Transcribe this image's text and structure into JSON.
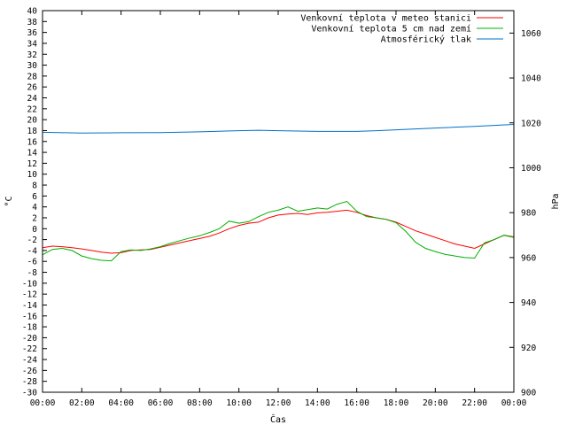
{
  "chart_data": {
    "type": "line",
    "xlabel": "Čas",
    "ylabel": "°C",
    "y2label": "hPa",
    "x_ticks": [
      "00:00",
      "02:00",
      "04:00",
      "06:00",
      "08:00",
      "10:00",
      "12:00",
      "14:00",
      "16:00",
      "18:00",
      "20:00",
      "22:00",
      "00:00"
    ],
    "x_range_hours": [
      0,
      24
    ],
    "ylim": [
      -30,
      40
    ],
    "y_step": 2,
    "y2lim": [
      900,
      1070
    ],
    "y2_ticks": [
      900,
      920,
      940,
      960,
      980,
      1000,
      1020,
      1040,
      1060
    ],
    "grid": false,
    "legend_position": "top-right",
    "series": [
      {
        "name": "Venkovní teplota v meteo stanici",
        "color": "#ff0000",
        "axis": "y1",
        "x": [
          0,
          0.5,
          1,
          1.5,
          2,
          2.5,
          3,
          3.5,
          4,
          4.5,
          5,
          5.5,
          6,
          6.5,
          7,
          7.5,
          8,
          8.5,
          9,
          9.5,
          10,
          10.5,
          11,
          11.5,
          12,
          12.5,
          13,
          13.5,
          14,
          14.5,
          15,
          15.5,
          16,
          16.5,
          17,
          17.5,
          18,
          18.5,
          19,
          19.5,
          20,
          20.5,
          21,
          21.5,
          22,
          22.5,
          23,
          23.5,
          24
        ],
        "values": [
          -3.5,
          -3.2,
          -3.3,
          -3.5,
          -3.7,
          -4,
          -4.3,
          -4.5,
          -4.4,
          -4,
          -3.9,
          -3.8,
          -3.4,
          -3,
          -2.6,
          -2.2,
          -1.8,
          -1.4,
          -0.8,
          0,
          0.6,
          1,
          1.2,
          2,
          2.5,
          2.7,
          2.8,
          2.6,
          2.9,
          3,
          3.2,
          3.4,
          3,
          2.4,
          2,
          1.7,
          1.2,
          0.4,
          -0.4,
          -1,
          -1.6,
          -2.2,
          -2.8,
          -3.2,
          -3.6,
          -2.8,
          -2,
          -1.2,
          -1.5
        ]
      },
      {
        "name": "Venkovní teplota 5 cm nad zemí",
        "color": "#00b000",
        "axis": "y1",
        "x": [
          0,
          0.5,
          1,
          1.5,
          2,
          2.5,
          3,
          3.5,
          4,
          4.5,
          5,
          5.5,
          6,
          6.5,
          7,
          7.5,
          8,
          8.5,
          9,
          9.5,
          10,
          10.5,
          11,
          11.5,
          12,
          12.5,
          13,
          13.5,
          14,
          14.5,
          15,
          15.5,
          16,
          16.5,
          17,
          17.5,
          18,
          18.5,
          19,
          19.5,
          20,
          20.5,
          21,
          21.5,
          22,
          22.5,
          23,
          23.5,
          24
        ],
        "values": [
          -4.8,
          -3.8,
          -3.6,
          -4,
          -5,
          -5.5,
          -5.8,
          -5.9,
          -4.2,
          -3.9,
          -4,
          -3.7,
          -3.3,
          -2.7,
          -2.2,
          -1.7,
          -1.3,
          -0.7,
          0,
          1.4,
          1,
          1.3,
          2.2,
          3,
          3.4,
          4,
          3.2,
          3.5,
          3.8,
          3.6,
          4.5,
          5,
          3.2,
          2.2,
          2,
          1.7,
          1.1,
          -0.5,
          -2.5,
          -3.6,
          -4.2,
          -4.7,
          -5,
          -5.3,
          -5.4,
          -2.6,
          -2,
          -1.2,
          -1.6
        ]
      },
      {
        "name": "Atmosférický tlak",
        "color": "#0070c8",
        "axis": "y2",
        "x": [
          0,
          2,
          4,
          6,
          8,
          10,
          11,
          12,
          14,
          16,
          17,
          18,
          20,
          22,
          24
        ],
        "values": [
          1015.8,
          1015.5,
          1015.6,
          1015.7,
          1016.0,
          1016.5,
          1016.7,
          1016.5,
          1016.2,
          1016.2,
          1016.5,
          1016.9,
          1017.7,
          1018.4,
          1019.3
        ]
      }
    ]
  }
}
